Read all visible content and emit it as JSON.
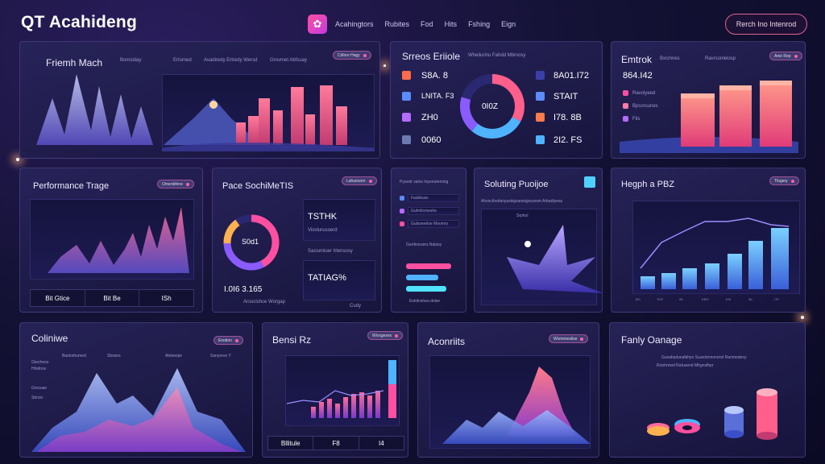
{
  "header": {
    "app_title": "QT Acahideng",
    "nav": [
      "Acahingtors",
      "Rubites",
      "Fod",
      "Hits",
      "Fshing",
      "Eign"
    ],
    "action_button": "Rerch Ino Intenrod"
  },
  "cards": {
    "c1": {
      "title": "Friemh Mach",
      "subs": [
        "Bomsiday",
        "Ertomed",
        "Avadiredy Ertredy Wersd",
        "Grovmet Abfsuay"
      ],
      "pill": "Cdlore Hagy"
    },
    "c2": {
      "title": "Srreos Eriiole",
      "sub": "Wheilurinu Fahdd Mbmosy",
      "left_metrics": [
        "S8A. 8",
        "LNITA. F3",
        "ZH0",
        "0060"
      ],
      "right_metrics": [
        "8A01.I72",
        "STAIT",
        "I78. 8B",
        "2I2. FS"
      ],
      "donut_label": "0I0Z"
    },
    "c3": {
      "title": "Emtrok",
      "subs": [
        "Bxcmnes",
        "Ravrsonlelosp"
      ],
      "pill": "Anie Rep",
      "value": "864.I42",
      "list": [
        "Ravolyeed",
        "Bpsorsunes",
        "Fils"
      ]
    },
    "c4": {
      "title": "Performance Trage",
      "pill": "Omenbhine",
      "buttons": [
        "Bit Gtice",
        "Bit Be",
        "ISh"
      ]
    },
    "c5": {
      "title": "Pace SochiMeTIS",
      "pill": "Lahuesonr",
      "donut_label": "S0d1",
      "metric1": "TSTHK",
      "metric1_sub": "Vioxlurusoerd",
      "metric2": "TATIAG%",
      "metric2_sub": "Cudy",
      "sub_mid": "Saciumiuer Irlensosy",
      "big": "I.0I6 3.165",
      "big_sub": "Arsocishce Worgap"
    },
    "c6": {
      "title": "Pyarstr salos Inpsouteming",
      "items": [
        "Fadsbuss",
        "Guhnlicmeshe",
        "Gulsoerelse Moomry"
      ],
      "sub": "Geofesruers Nalasy",
      "bottom": "Eokitnshea dolse"
    },
    "c7": {
      "title": "Soluting Puoijoe",
      "sub": "Ahxncihodanyaxkigsanwigrsuosm Arbadiyeas",
      "marker": "Srphul"
    },
    "c8": {
      "title": "Hegph a PBZ",
      "pill": "Tlogery",
      "ticks": [
        "BO",
        "7I92",
        "I5I",
        "ERG",
        "IH3",
        "3IL",
        "I7P"
      ]
    },
    "c9": {
      "title": "Coliniwe",
      "pill": "Enotion",
      "subs": [
        "Bastodrumed",
        "Sbowrs",
        "Aleteeqie",
        "Sanyreve Y"
      ],
      "legend": [
        "Gtocheos",
        "Hlndoss",
        "Grosuan",
        "Sbroiv"
      ]
    },
    "c10": {
      "title": "Bensi Rz",
      "pill": "Wivxgeses",
      "buttons": [
        "Bllitule",
        "F8",
        "I4"
      ]
    },
    "c11": {
      "title": "Aconriits",
      "pill": "Wivmmeslise"
    },
    "c12": {
      "title": "Fanly Oanage",
      "subs": [
        "Guvabsdunalbhyo Suarobnnorsmd Ranmedeny",
        "Ronhnrwd Rafusend Mhgnsfhpr"
      ]
    }
  },
  "colors": {
    "accent_pink": "#ff4fa0",
    "accent_blue": "#4fb3ff",
    "accent_purple": "#9d6bff"
  }
}
